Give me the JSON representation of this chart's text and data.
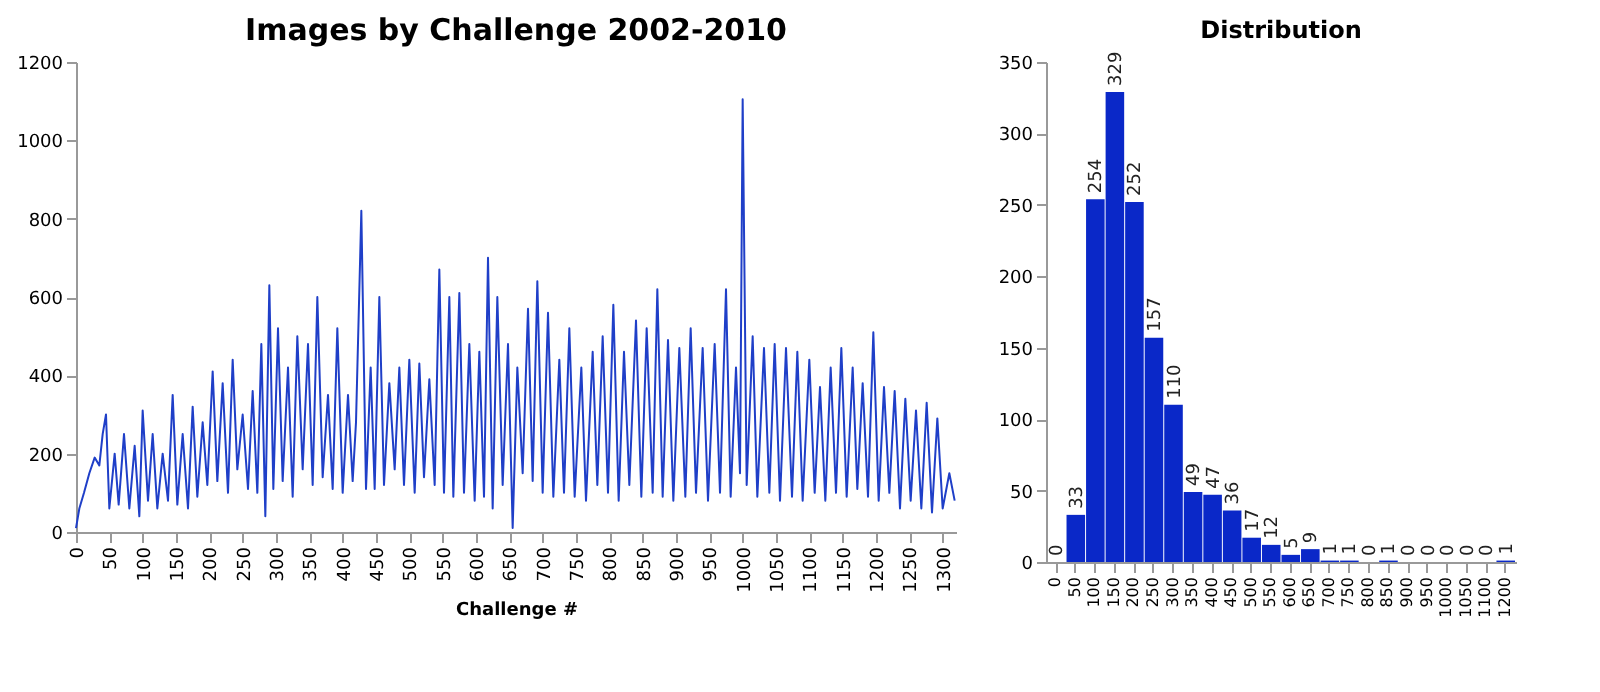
{
  "chart_data": [
    {
      "type": "line",
      "title": "Images by Challenge 2002-2010",
      "xlabel": "Challenge #",
      "color": "#1f3fc8",
      "grid": false,
      "xlim": [
        0,
        1320
      ],
      "ylim": [
        0,
        1200
      ],
      "xticks": [
        0,
        50,
        100,
        150,
        200,
        250,
        300,
        350,
        400,
        450,
        500,
        550,
        600,
        650,
        700,
        750,
        800,
        850,
        900,
        950,
        1000,
        1050,
        1100,
        1150,
        1200,
        1250,
        1300
      ],
      "yticks": [
        0,
        200,
        400,
        600,
        800,
        1000,
        1200
      ],
      "x": [
        0,
        5,
        12,
        20,
        28,
        35,
        40,
        45,
        50,
        58,
        64,
        72,
        80,
        88,
        95,
        100,
        108,
        115,
        122,
        130,
        138,
        145,
        152,
        160,
        168,
        175,
        182,
        190,
        197,
        205,
        212,
        220,
        228,
        235,
        242,
        250,
        258,
        265,
        272,
        278,
        284,
        290,
        296,
        303,
        310,
        318,
        325,
        332,
        340,
        348,
        355,
        362,
        370,
        378,
        385,
        392,
        400,
        408,
        415,
        420,
        428,
        435,
        442,
        448,
        455,
        462,
        470,
        478,
        485,
        492,
        500,
        508,
        515,
        522,
        530,
        538,
        545,
        552,
        560,
        566,
        575,
        582,
        590,
        598,
        605,
        612,
        618,
        625,
        632,
        640,
        648,
        655,
        662,
        670,
        678,
        685,
        692,
        700,
        708,
        716,
        725,
        732,
        740,
        748,
        758,
        765,
        775,
        782,
        790,
        798,
        806,
        814,
        822,
        830,
        840,
        848,
        856,
        865,
        872,
        880,
        888,
        896,
        905,
        914,
        922,
        930,
        940,
        948,
        958,
        966,
        975,
        982,
        990,
        996,
        1000,
        1006,
        1015,
        1022,
        1032,
        1040,
        1048,
        1056,
        1065,
        1074,
        1082,
        1090,
        1100,
        1108,
        1116,
        1124,
        1132,
        1140,
        1148,
        1156,
        1165,
        1172,
        1180,
        1188,
        1196,
        1204,
        1212,
        1220,
        1228,
        1236,
        1244,
        1252,
        1260,
        1268,
        1276,
        1284,
        1292,
        1300,
        1310,
        1318
      ],
      "values": [
        10,
        60,
        100,
        150,
        190,
        170,
        250,
        300,
        60,
        200,
        70,
        250,
        60,
        220,
        40,
        310,
        80,
        250,
        60,
        200,
        80,
        350,
        70,
        250,
        60,
        320,
        90,
        280,
        120,
        410,
        130,
        380,
        100,
        440,
        160,
        300,
        110,
        360,
        100,
        480,
        40,
        630,
        110,
        520,
        130,
        420,
        90,
        500,
        160,
        480,
        120,
        600,
        140,
        350,
        110,
        520,
        100,
        350,
        130,
        280,
        820,
        110,
        420,
        110,
        600,
        120,
        380,
        160,
        420,
        120,
        440,
        100,
        430,
        140,
        390,
        120,
        670,
        100,
        600,
        90,
        610,
        100,
        480,
        80,
        460,
        90,
        700,
        60,
        600,
        120,
        480,
        10,
        420,
        150,
        570,
        130,
        640,
        100,
        560,
        90,
        440,
        100,
        520,
        90,
        420,
        80,
        460,
        120,
        500,
        100,
        580,
        80,
        460,
        120,
        540,
        90,
        520,
        100,
        620,
        90,
        490,
        80,
        470,
        90,
        520,
        100,
        470,
        80,
        480,
        100,
        620,
        90,
        420,
        150,
        1105,
        120,
        500,
        90,
        470,
        100,
        480,
        80,
        470,
        90,
        460,
        80,
        440,
        100,
        370,
        80,
        420,
        100,
        470,
        90,
        420,
        110,
        380,
        90,
        510,
        80,
        370,
        100,
        360,
        60,
        340,
        80,
        310,
        60,
        330,
        50,
        290,
        60,
        150,
        80
      ]
    },
    {
      "type": "bar",
      "title": "Distribution",
      "color": "#0a28c8",
      "grid": false,
      "data_labels": true,
      "ylim": [
        0,
        350
      ],
      "yticks": [
        0,
        50,
        100,
        150,
        200,
        250,
        300,
        350
      ],
      "categories": [
        "0",
        "50",
        "100",
        "150",
        "200",
        "250",
        "300",
        "350",
        "400",
        "450",
        "500",
        "550",
        "600",
        "650",
        "700",
        "750",
        "800",
        "850",
        "900",
        "950",
        "1000",
        "1050",
        "1100",
        "1200"
      ],
      "values": [
        0,
        33,
        254,
        329,
        252,
        157,
        110,
        49,
        47,
        36,
        17,
        12,
        5,
        9,
        1,
        1,
        0,
        1,
        0,
        0,
        0,
        0,
        0,
        1
      ]
    }
  ]
}
